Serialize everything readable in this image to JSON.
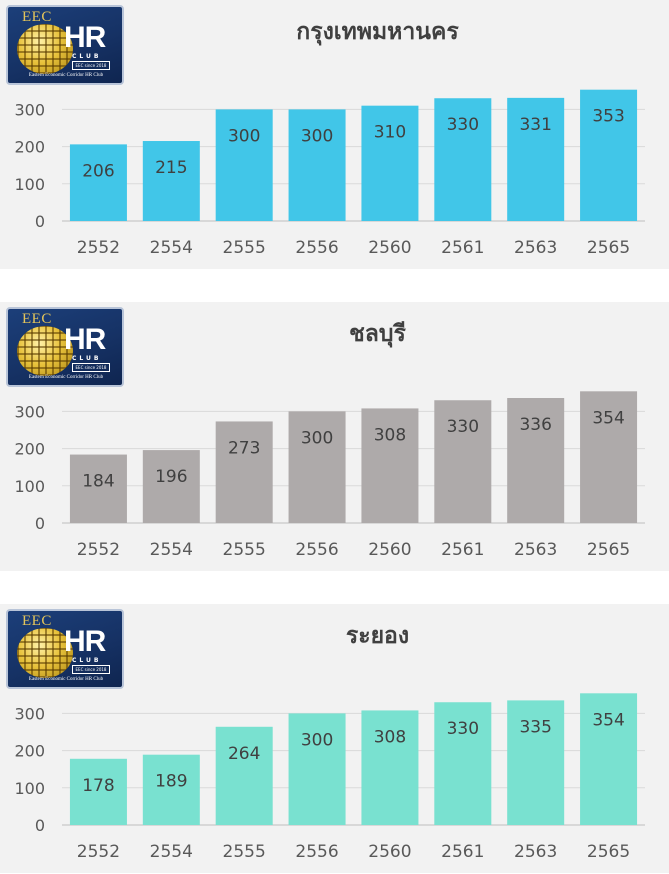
{
  "logo": {
    "top_text": "EEC",
    "main_text": "HR",
    "sub_text": "CLUB",
    "since_text": "EEC since 2018",
    "tagline": "Eastern Economic Corridor HR Club"
  },
  "chart_data": [
    {
      "type": "bar",
      "title": "กรุงเทพมหานคร",
      "categories": [
        "2552",
        "2554",
        "2555",
        "2556",
        "2560",
        "2561",
        "2563",
        "2565"
      ],
      "values": [
        206,
        215,
        300,
        300,
        310,
        330,
        331,
        353
      ],
      "ylim": [
        0,
        360
      ],
      "yticks": [
        "0",
        "100",
        "200",
        "300"
      ],
      "color": "#41c6e8",
      "grid": true,
      "xlabel": "",
      "ylabel": ""
    },
    {
      "type": "bar",
      "title": "ชลบุรี",
      "categories": [
        "2552",
        "2554",
        "2555",
        "2556",
        "2560",
        "2561",
        "2563",
        "2565"
      ],
      "values": [
        184,
        196,
        273,
        300,
        308,
        330,
        336,
        354
      ],
      "ylim": [
        0,
        360
      ],
      "yticks": [
        "0",
        "100",
        "200",
        "300"
      ],
      "color": "#aeaaaa",
      "grid": true,
      "xlabel": "",
      "ylabel": ""
    },
    {
      "type": "bar",
      "title": "ระยอง",
      "categories": [
        "2552",
        "2554",
        "2555",
        "2556",
        "2560",
        "2561",
        "2563",
        "2565"
      ],
      "values": [
        178,
        189,
        264,
        300,
        308,
        330,
        335,
        354
      ],
      "ylim": [
        0,
        360
      ],
      "yticks": [
        "0",
        "100",
        "200",
        "300"
      ],
      "color": "#79e1d0",
      "grid": true,
      "xlabel": "",
      "ylabel": ""
    }
  ]
}
